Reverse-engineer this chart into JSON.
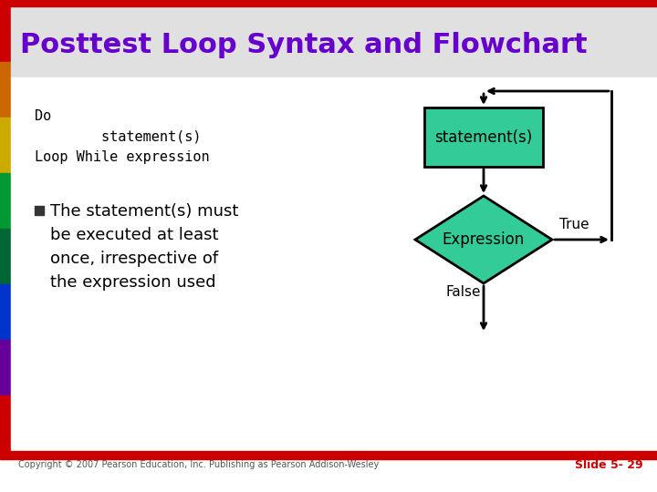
{
  "title": "Posttest Loop Syntax and Flowchart",
  "title_color": "#6600cc",
  "title_fontsize": 22,
  "bg_color": "#ffffff",
  "top_bar_color": "#cc0000",
  "bottom_bar_color": "#cc0000",
  "left_bar_colors": [
    "#cc0000",
    "#cc6600",
    "#ccaa00",
    "#009933",
    "#006633",
    "#0033cc",
    "#660099",
    "#cc0000"
  ],
  "title_bg_color": "#e0e0e0",
  "content_bg_color": "#ffffff",
  "code_fontsize": 11,
  "bullet_fontsize": 13,
  "box_color": "#33cc99",
  "box_label": "statement(s)",
  "diamond_label": "Expression",
  "true_label": "True",
  "false_label": "False",
  "copyright_text": "Copyright © 2007 Pearson Education, Inc. Publishing as Pearson Addison-Wesley",
  "slide_num": "Slide 5- 29",
  "slide_num_color": "#cc0000",
  "footer_fontsize": 7,
  "slide_num_fontsize": 9
}
